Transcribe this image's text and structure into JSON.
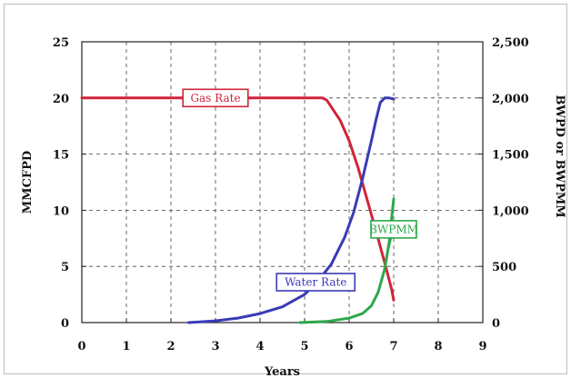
{
  "chart_data": {
    "type": "line",
    "xlabel": "Years",
    "ylabel_left": "MMCFPD",
    "ylabel_right": "BWPD or BWPMM",
    "xlim": [
      0,
      9
    ],
    "ylim_left": [
      0,
      25
    ],
    "ylim_right": [
      0,
      2500
    ],
    "x_ticks": [
      "0",
      "1",
      "2",
      "3",
      "4",
      "5",
      "6",
      "7",
      "8",
      "9"
    ],
    "y_ticks_left": [
      "0",
      "5",
      "10",
      "15",
      "20",
      "25"
    ],
    "y_ticks_right": [
      "0",
      "500",
      "1,000",
      "1,500",
      "2,000",
      "2,500"
    ],
    "grid": true,
    "series": [
      {
        "name": "Gas Rate",
        "axis": "left",
        "color": "#d0243a",
        "x": [
          0,
          5.4,
          5.5,
          5.8,
          6.0,
          6.2,
          6.4,
          6.6,
          6.8,
          6.95,
          7.0
        ],
        "y": [
          20,
          20,
          19.8,
          18.0,
          16.2,
          13.8,
          11.0,
          8.2,
          5.3,
          3.0,
          2.0
        ]
      },
      {
        "name": "Water Rate",
        "axis": "right",
        "color": "#3a3ab8",
        "x": [
          2.4,
          3.0,
          3.5,
          4.0,
          4.5,
          5.0,
          5.3,
          5.6,
          5.9,
          6.1,
          6.3,
          6.5,
          6.6,
          6.7,
          6.8,
          6.9,
          7.0
        ],
        "y": [
          0,
          15,
          40,
          80,
          140,
          250,
          370,
          520,
          760,
          980,
          1280,
          1620,
          1800,
          1960,
          2000,
          2000,
          1990
        ]
      },
      {
        "name": "BWPMM",
        "axis": "right",
        "color": "#2ca84a",
        "x": [
          4.9,
          5.5,
          6.0,
          6.3,
          6.5,
          6.65,
          6.8,
          6.9,
          6.95,
          7.0
        ],
        "y": [
          0,
          10,
          40,
          80,
          150,
          270,
          480,
          720,
          920,
          1100
        ]
      }
    ],
    "annotations": [
      {
        "text": "Gas Rate",
        "series": "Gas Rate"
      },
      {
        "text": "Water Rate",
        "series": "Water Rate"
      },
      {
        "text": "BWPMM",
        "series": "BWPMM"
      }
    ]
  }
}
